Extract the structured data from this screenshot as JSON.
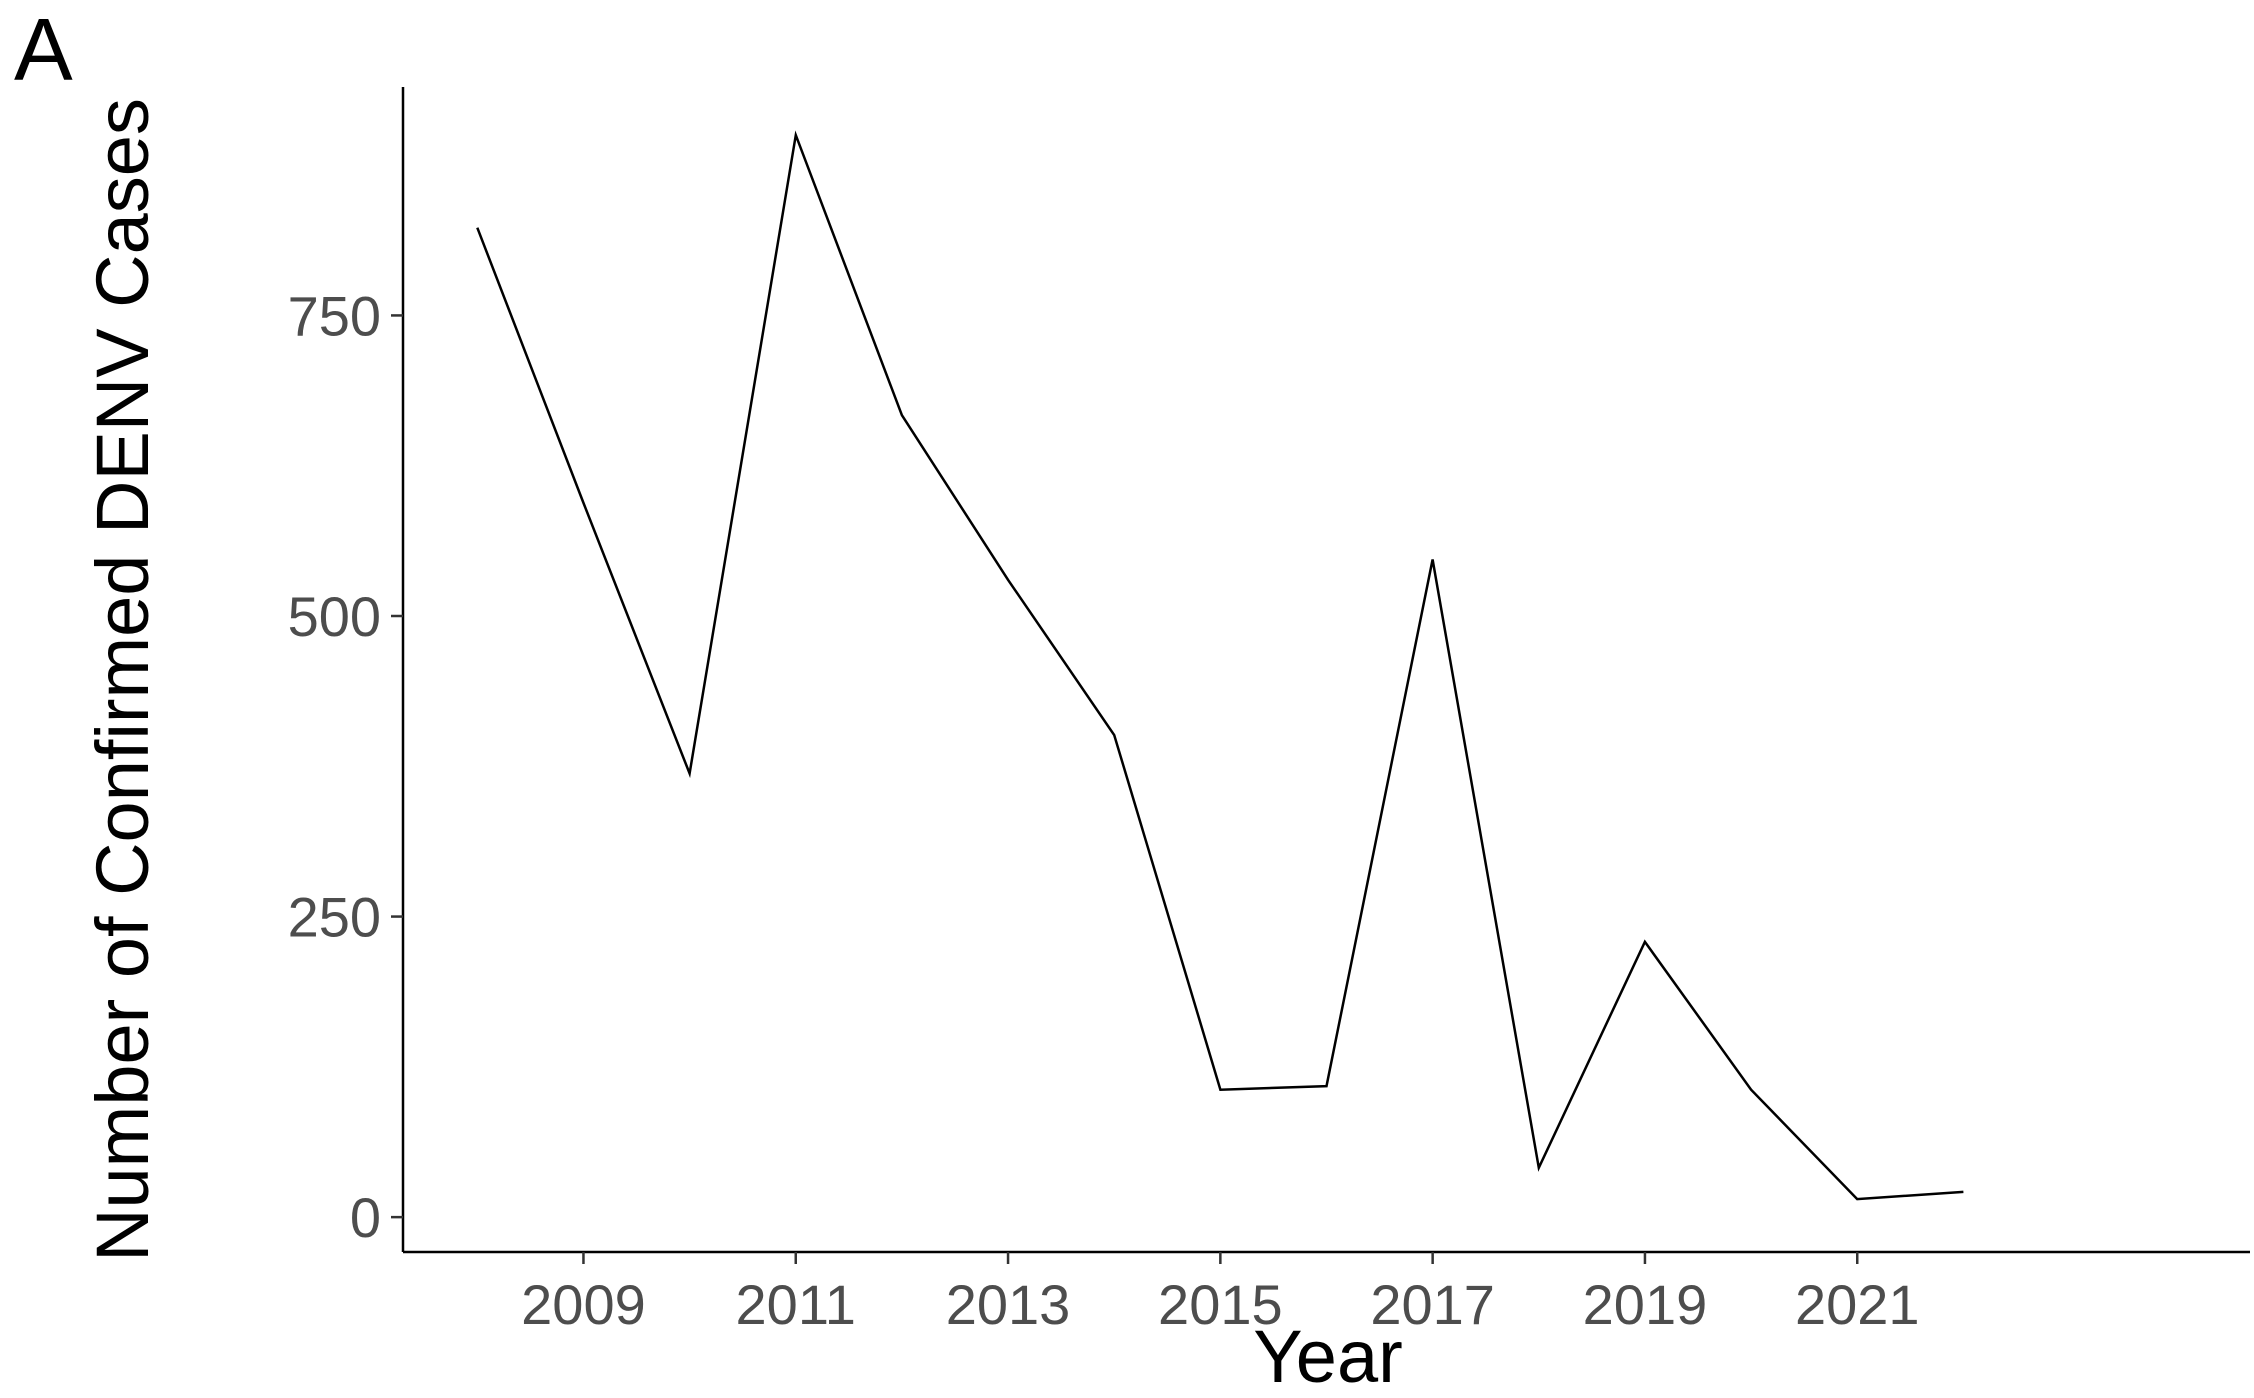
{
  "panel_label": "A",
  "chart_data": {
    "type": "line",
    "xlabel": "Year",
    "ylabel": "Number of Confirmed DENV Cases",
    "x": [
      2008,
      2009,
      2010,
      2011,
      2012,
      2013,
      2014,
      2015,
      2016,
      2017,
      2018,
      2019,
      2020,
      2021,
      2022
    ],
    "series": [
      {
        "values": [
          823,
          594,
          369,
          900,
          667,
          530,
          401,
          106,
          109,
          547,
          41,
          229,
          106,
          15,
          21
        ]
      }
    ],
    "x_ticks": [
      "2009",
      "2011",
      "2013",
      "2015",
      "2017",
      "2019",
      "2021"
    ],
    "y_ticks": [
      "0",
      "250",
      "500",
      "750"
    ],
    "xlim": [
      2007.3,
      2024.7
    ],
    "ylim": [
      -29,
      940
    ],
    "grid": false,
    "legend": "none",
    "line_color": "#000000"
  }
}
